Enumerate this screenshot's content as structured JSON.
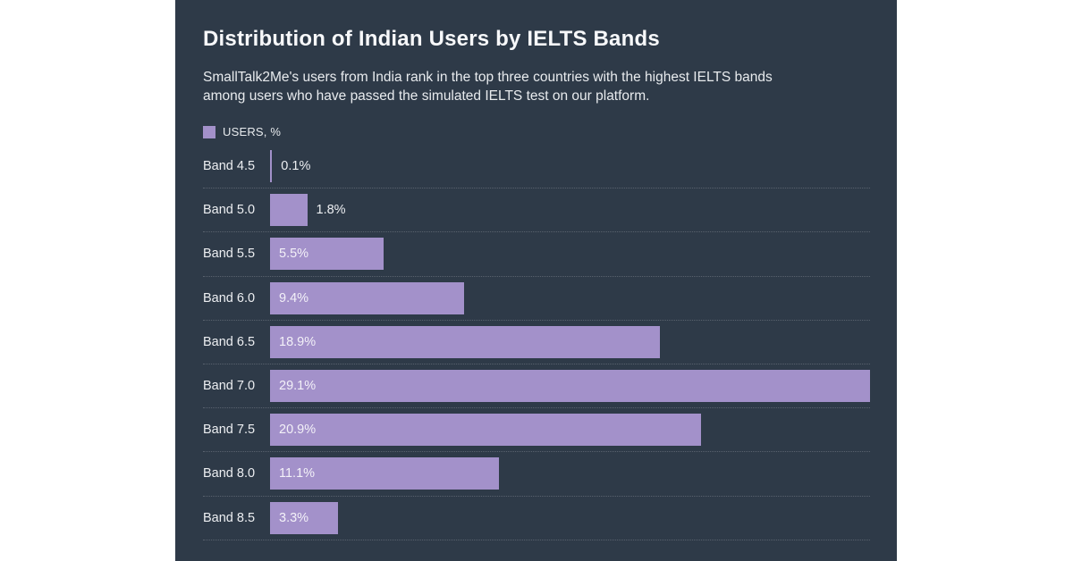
{
  "page": {
    "background_color": "#ffffff",
    "panel_background_color": "#2e3a48"
  },
  "header": {
    "title": "Distribution of Indian Users by IELTS Bands",
    "subtitle_lines": [
      "SmallTalk2Me's users from India rank in the top three countries with the highest IELTS bands",
      "among users who have passed the simulated IELTS test on our platform."
    ]
  },
  "legend": {
    "label": "USERS, %",
    "swatch_color": "#a391ca"
  },
  "chart_data": {
    "type": "bar",
    "orientation": "horizontal",
    "title": "Distribution of Indian Users by IELTS Bands",
    "series_name": "USERS, %",
    "categories": [
      "Band 4.5",
      "Band 5.0",
      "Band 5.5",
      "Band 6.0",
      "Band 6.5",
      "Band 7.0",
      "Band 7.5",
      "Band 8.0",
      "Band 8.5"
    ],
    "values": [
      0.1,
      1.8,
      5.5,
      9.4,
      18.9,
      29.1,
      20.9,
      11.1,
      3.3
    ],
    "value_labels": [
      "0.1%",
      "1.8%",
      "5.5%",
      "9.4%",
      "18.9%",
      "29.1%",
      "20.9%",
      "11.1%",
      "3.3%"
    ],
    "xlabel": "",
    "ylabel": "",
    "xlim": [
      0,
      29.1
    ],
    "bar_color": "#a391ca",
    "grid": "dotted horizontal separators between rows",
    "legend_position": "top-left",
    "value_label_rule": "inside bar when bar is wide enough, otherwise right of bar"
  }
}
